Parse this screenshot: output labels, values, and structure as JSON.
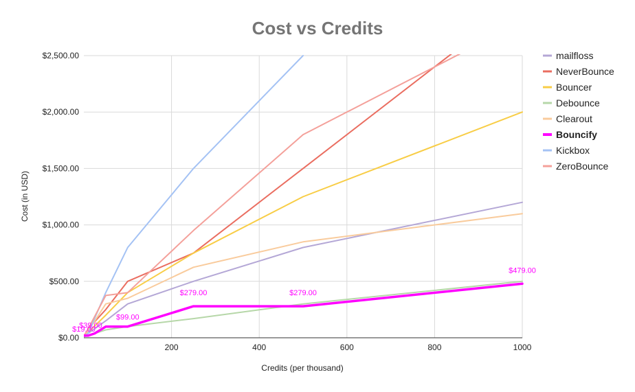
{
  "chart_data": {
    "type": "line",
    "title": "Cost vs Credits",
    "xlabel": "Credits (per thousand)",
    "ylabel": "Cost (in USD)",
    "xlim": [
      0,
      1000
    ],
    "ylim": [
      0,
      2500
    ],
    "x_ticks": [
      200,
      400,
      600,
      800,
      1000
    ],
    "y_ticks": [
      0,
      500,
      1000,
      1500,
      2000,
      2500
    ],
    "y_tick_labels": [
      "$0.00",
      "$500.00",
      "$1,000.00",
      "$1,500.00",
      "$2,000.00",
      "$2,500.00"
    ],
    "grid": true,
    "legend_position": "right",
    "series": [
      {
        "name": "mailfloss",
        "color": "#b4a7d6",
        "bold": false,
        "points": [
          [
            0,
            20
          ],
          [
            10,
            40
          ],
          [
            50,
            150
          ],
          [
            100,
            300
          ],
          [
            250,
            500
          ],
          [
            500,
            800
          ],
          [
            1000,
            1200
          ]
        ]
      },
      {
        "name": "NeverBounce",
        "color": "#ea6d60",
        "bold": false,
        "points": [
          [
            0,
            8
          ],
          [
            10,
            80
          ],
          [
            50,
            250
          ],
          [
            100,
            500
          ],
          [
            250,
            750
          ],
          [
            500,
            1500
          ],
          [
            1000,
            3000
          ]
        ]
      },
      {
        "name": "Bouncer",
        "color": "#f8cd46",
        "bold": false,
        "points": [
          [
            0,
            8
          ],
          [
            10,
            50
          ],
          [
            50,
            200
          ],
          [
            100,
            400
          ],
          [
            250,
            750
          ],
          [
            500,
            1250
          ],
          [
            1000,
            2000
          ]
        ]
      },
      {
        "name": "Debounce",
        "color": "#b6d7a8",
        "bold": false,
        "points": [
          [
            0,
            10
          ],
          [
            10,
            20
          ],
          [
            50,
            70
          ],
          [
            100,
            100
          ],
          [
            250,
            170
          ],
          [
            500,
            300
          ],
          [
            1000,
            500
          ]
        ]
      },
      {
        "name": "Clearout",
        "color": "#f9cb9c",
        "bold": false,
        "points": [
          [
            0,
            20
          ],
          [
            10,
            60
          ],
          [
            50,
            300
          ],
          [
            100,
            350
          ],
          [
            250,
            625
          ],
          [
            500,
            850
          ],
          [
            1000,
            1100
          ]
        ]
      },
      {
        "name": "Bouncify",
        "color": "#ff00ff",
        "bold": true,
        "points": [
          [
            0,
            19
          ],
          [
            10,
            19
          ],
          [
            25,
            39
          ],
          [
            50,
            99
          ],
          [
            100,
            99
          ],
          [
            250,
            279
          ],
          [
            500,
            279
          ],
          [
            1000,
            479
          ]
        ]
      },
      {
        "name": "Kickbox",
        "color": "#a4c2f4",
        "bold": false,
        "points": [
          [
            0,
            10
          ],
          [
            10,
            40
          ],
          [
            50,
            400
          ],
          [
            100,
            800
          ],
          [
            250,
            1500
          ],
          [
            500,
            2500
          ]
        ]
      },
      {
        "name": "ZeroBounce",
        "color": "#f4a09a",
        "bold": false,
        "points": [
          [
            0,
            16
          ],
          [
            10,
            80
          ],
          [
            50,
            375
          ],
          [
            100,
            400
          ],
          [
            250,
            950
          ],
          [
            500,
            1800
          ],
          [
            1000,
            2800
          ]
        ]
      }
    ],
    "annotations": [
      {
        "text": "$19.00",
        "x": 0,
        "y": 19,
        "color": "#ff00ff"
      },
      {
        "text": "$39.00",
        "x": 25,
        "y": 39,
        "color": "#ff00ff"
      },
      {
        "text": "$99.00",
        "x": 100,
        "y": 99,
        "color": "#ff00ff"
      },
      {
        "text": "$279.00",
        "x": 250,
        "y": 279,
        "color": "#ff00ff"
      },
      {
        "text": "$279.00",
        "x": 500,
        "y": 279,
        "color": "#ff00ff"
      },
      {
        "text": "$479.00",
        "x": 1000,
        "y": 479,
        "color": "#ff00ff"
      }
    ]
  }
}
